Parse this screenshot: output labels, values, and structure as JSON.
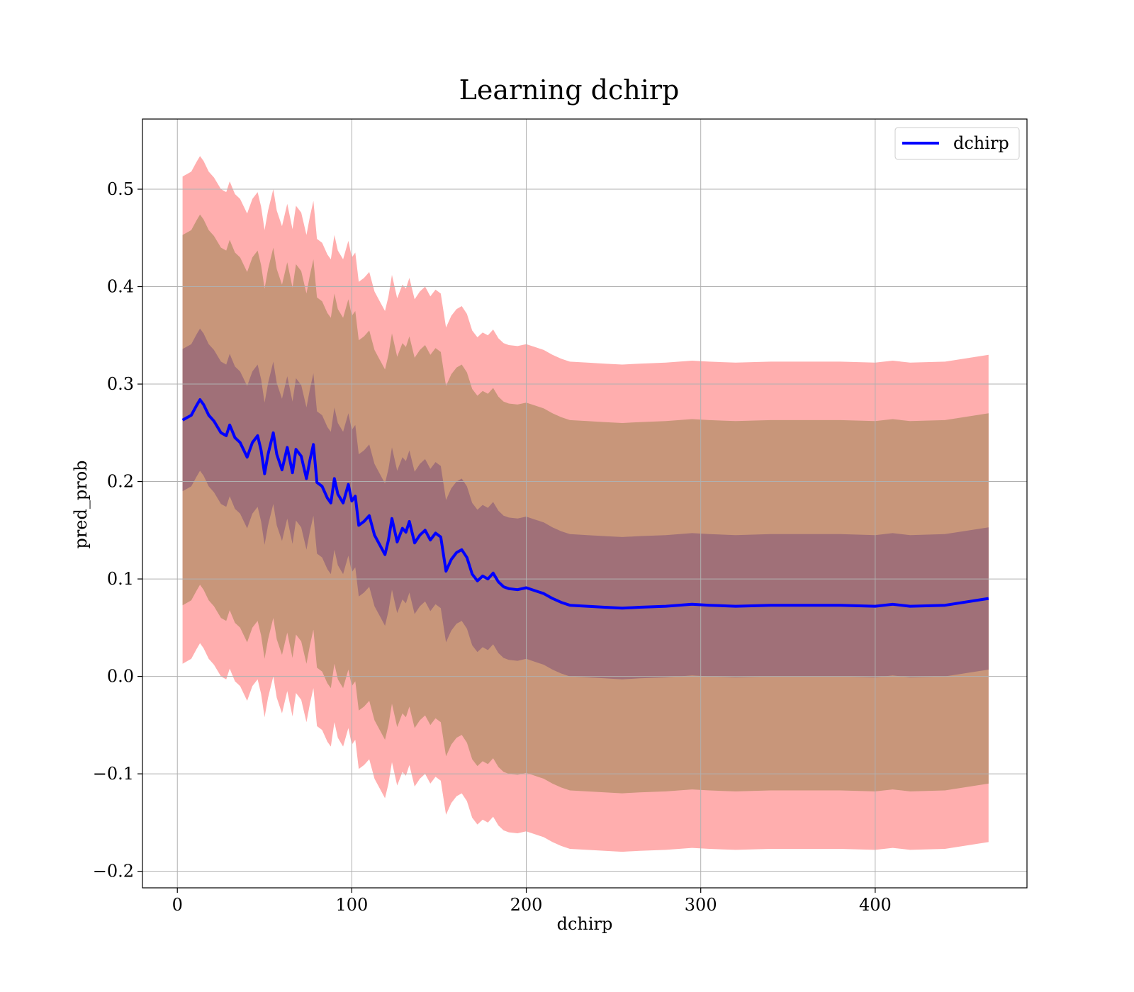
{
  "chart_data": {
    "type": "area",
    "title": "Learning dchirp",
    "xlabel": "dchirp",
    "ylabel": "pred_prob",
    "xlim": [
      -20,
      487
    ],
    "ylim": [
      -0.217,
      0.572
    ],
    "xticks": [
      0,
      100,
      200,
      300,
      400
    ],
    "yticks": [
      -0.2,
      -0.1,
      0.0,
      0.1,
      0.2,
      0.3,
      0.4,
      0.5
    ],
    "grid": true,
    "legend": {
      "position": "upper-right",
      "entries": [
        "dchirp"
      ]
    },
    "colors": {
      "line": "#0000ff",
      "band_outer": "#ffaeae",
      "band_middle": "#c8967a",
      "band_inner": "#a07078"
    },
    "series": [
      {
        "name": "dchirp",
        "x": [
          3,
          8,
          11,
          13,
          15,
          18,
          21,
          25,
          28,
          30,
          33,
          36,
          40,
          43,
          46,
          48,
          50,
          52,
          55,
          57,
          60,
          63,
          66,
          68,
          71,
          74,
          76,
          78,
          80,
          83,
          86,
          88,
          90,
          92,
          95,
          98,
          100,
          102,
          104,
          107,
          110,
          113,
          116,
          119,
          121,
          123,
          126,
          129,
          131,
          133,
          136,
          139,
          142,
          145,
          148,
          151,
          154,
          157,
          160,
          163,
          166,
          169,
          172,
          175,
          178,
          181,
          184,
          187,
          190,
          195,
          200,
          205,
          210,
          215,
          220,
          225,
          235,
          245,
          255,
          265,
          280,
          295,
          305,
          320,
          340,
          360,
          380,
          400,
          410,
          420,
          440,
          465
        ],
        "y": [
          0.263,
          0.268,
          0.278,
          0.284,
          0.279,
          0.268,
          0.262,
          0.25,
          0.247,
          0.258,
          0.245,
          0.24,
          0.225,
          0.24,
          0.247,
          0.232,
          0.208,
          0.228,
          0.25,
          0.228,
          0.212,
          0.235,
          0.209,
          0.233,
          0.226,
          0.203,
          0.222,
          0.238,
          0.199,
          0.195,
          0.183,
          0.178,
          0.203,
          0.187,
          0.178,
          0.197,
          0.18,
          0.185,
          0.155,
          0.159,
          0.165,
          0.145,
          0.135,
          0.125,
          0.14,
          0.162,
          0.138,
          0.152,
          0.148,
          0.159,
          0.137,
          0.145,
          0.15,
          0.14,
          0.147,
          0.143,
          0.108,
          0.12,
          0.127,
          0.13,
          0.122,
          0.105,
          0.098,
          0.103,
          0.1,
          0.106,
          0.097,
          0.092,
          0.09,
          0.089,
          0.091,
          0.088,
          0.085,
          0.08,
          0.076,
          0.073,
          0.072,
          0.071,
          0.07,
          0.071,
          0.072,
          0.074,
          0.073,
          0.072,
          0.073,
          0.073,
          0.073,
          0.072,
          0.074,
          0.072,
          0.073,
          0.08
        ]
      }
    ],
    "bands": [
      {
        "offset": 0.25,
        "fill": "band_outer"
      },
      {
        "offset": 0.19,
        "fill": "band_middle"
      },
      {
        "offset": 0.073,
        "fill": "band_inner"
      }
    ]
  }
}
